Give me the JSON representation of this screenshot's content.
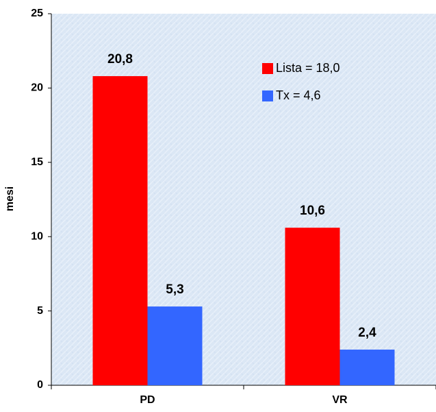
{
  "chart_data": {
    "type": "bar",
    "y_label": "mesi",
    "categories": [
      "PD",
      "VR"
    ],
    "series": [
      {
        "name": "Lista = 18,0",
        "color": "#ff0000",
        "values": [
          20.8,
          10.6
        ],
        "value_labels": [
          "20,8",
          "10,6"
        ]
      },
      {
        "name": "Tx = 4,6",
        "color": "#3366ff",
        "values": [
          5.3,
          2.4
        ],
        "value_labels": [
          "5,3",
          "2,4"
        ]
      }
    ],
    "ylim": [
      0,
      25
    ],
    "yticks": [
      0,
      5,
      10,
      15,
      20,
      25
    ]
  }
}
